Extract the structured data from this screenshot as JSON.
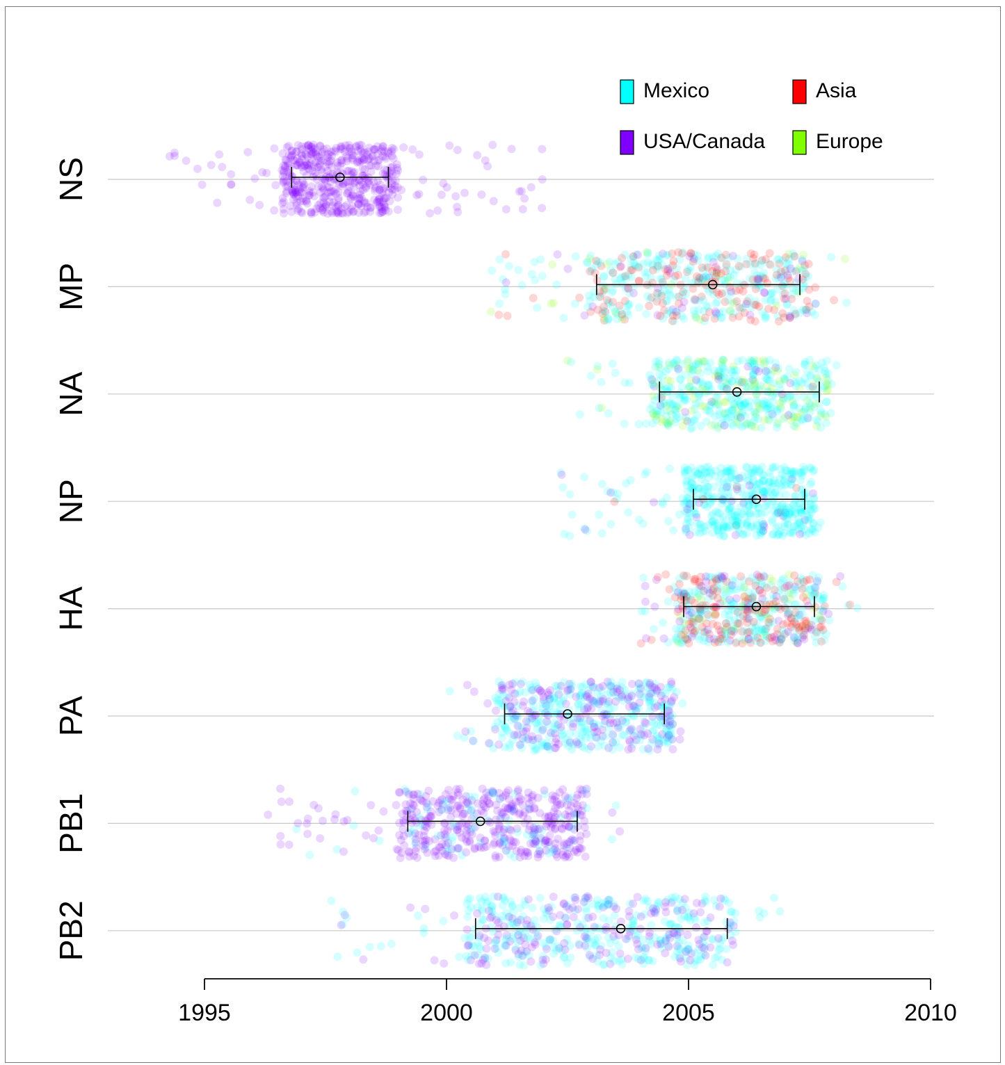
{
  "chart_data": {
    "type": "scatter",
    "title": "",
    "xlabel": "",
    "ylabel": "",
    "xlim": [
      1993.1,
      2010
    ],
    "x_ticks": [
      "1995",
      "2000",
      "2005",
      "2010"
    ],
    "categories": [
      "NS",
      "MP",
      "NA",
      "NP",
      "HA",
      "PA",
      "PB1",
      "PB2"
    ],
    "legend": {
      "placement": "top-right",
      "entries": [
        {
          "name": "Mexico",
          "color": "#00ffff"
        },
        {
          "name": "Asia",
          "color": "#ff0000"
        },
        {
          "name": "USA/Canada",
          "color": "#8000ff"
        },
        {
          "name": "Europe",
          "color": "#80ff00"
        }
      ]
    },
    "grid": true,
    "segments": [
      {
        "name": "NS",
        "mean": 1997.8,
        "ci": [
          1996.8,
          1998.8
        ],
        "range": [
          1994.2,
          2002.0
        ],
        "mix": {
          "USA/Canada": 1.0
        }
      },
      {
        "name": "MP",
        "mean": 2005.5,
        "ci": [
          2003.1,
          2007.3
        ],
        "range": [
          2000.9,
          2008.3
        ],
        "mix": {
          "Mexico": 0.55,
          "Asia": 0.3,
          "USA/Canada": 0.1,
          "Europe": 0.05
        }
      },
      {
        "name": "NA",
        "mean": 2006.0,
        "ci": [
          2004.4,
          2007.7
        ],
        "range": [
          2002.5,
          2008.1
        ],
        "mix": {
          "Mexico": 0.75,
          "Europe": 0.2,
          "USA/Canada": 0.05
        }
      },
      {
        "name": "NP",
        "mean": 2006.4,
        "ci": [
          2005.1,
          2007.4
        ],
        "range": [
          2002.3,
          2007.9
        ],
        "mix": {
          "Mexico": 0.9,
          "USA/Canada": 0.07,
          "Asia": 0.03
        }
      },
      {
        "name": "HA",
        "mean": 2006.4,
        "ci": [
          2004.9,
          2007.6
        ],
        "range": [
          2004.0,
          2008.5
        ],
        "mix": {
          "Mexico": 0.45,
          "Asia": 0.35,
          "USA/Canada": 0.15,
          "Europe": 0.05
        }
      },
      {
        "name": "PA",
        "mean": 2002.5,
        "ci": [
          2001.2,
          2004.5
        ],
        "range": [
          2000.0,
          2005.0
        ],
        "mix": {
          "Mexico": 0.6,
          "USA/Canada": 0.4
        }
      },
      {
        "name": "PB1",
        "mean": 2000.7,
        "ci": [
          1999.2,
          2002.7
        ],
        "range": [
          1996.3,
          2003.7
        ],
        "mix": {
          "USA/Canada": 0.85,
          "Mexico": 0.15
        }
      },
      {
        "name": "PB2",
        "mean": 2003.6,
        "ci": [
          2000.6,
          2005.8
        ],
        "range": [
          1997.6,
          2007.0
        ],
        "mix": {
          "Mexico": 0.6,
          "USA/Canada": 0.4
        }
      }
    ]
  }
}
